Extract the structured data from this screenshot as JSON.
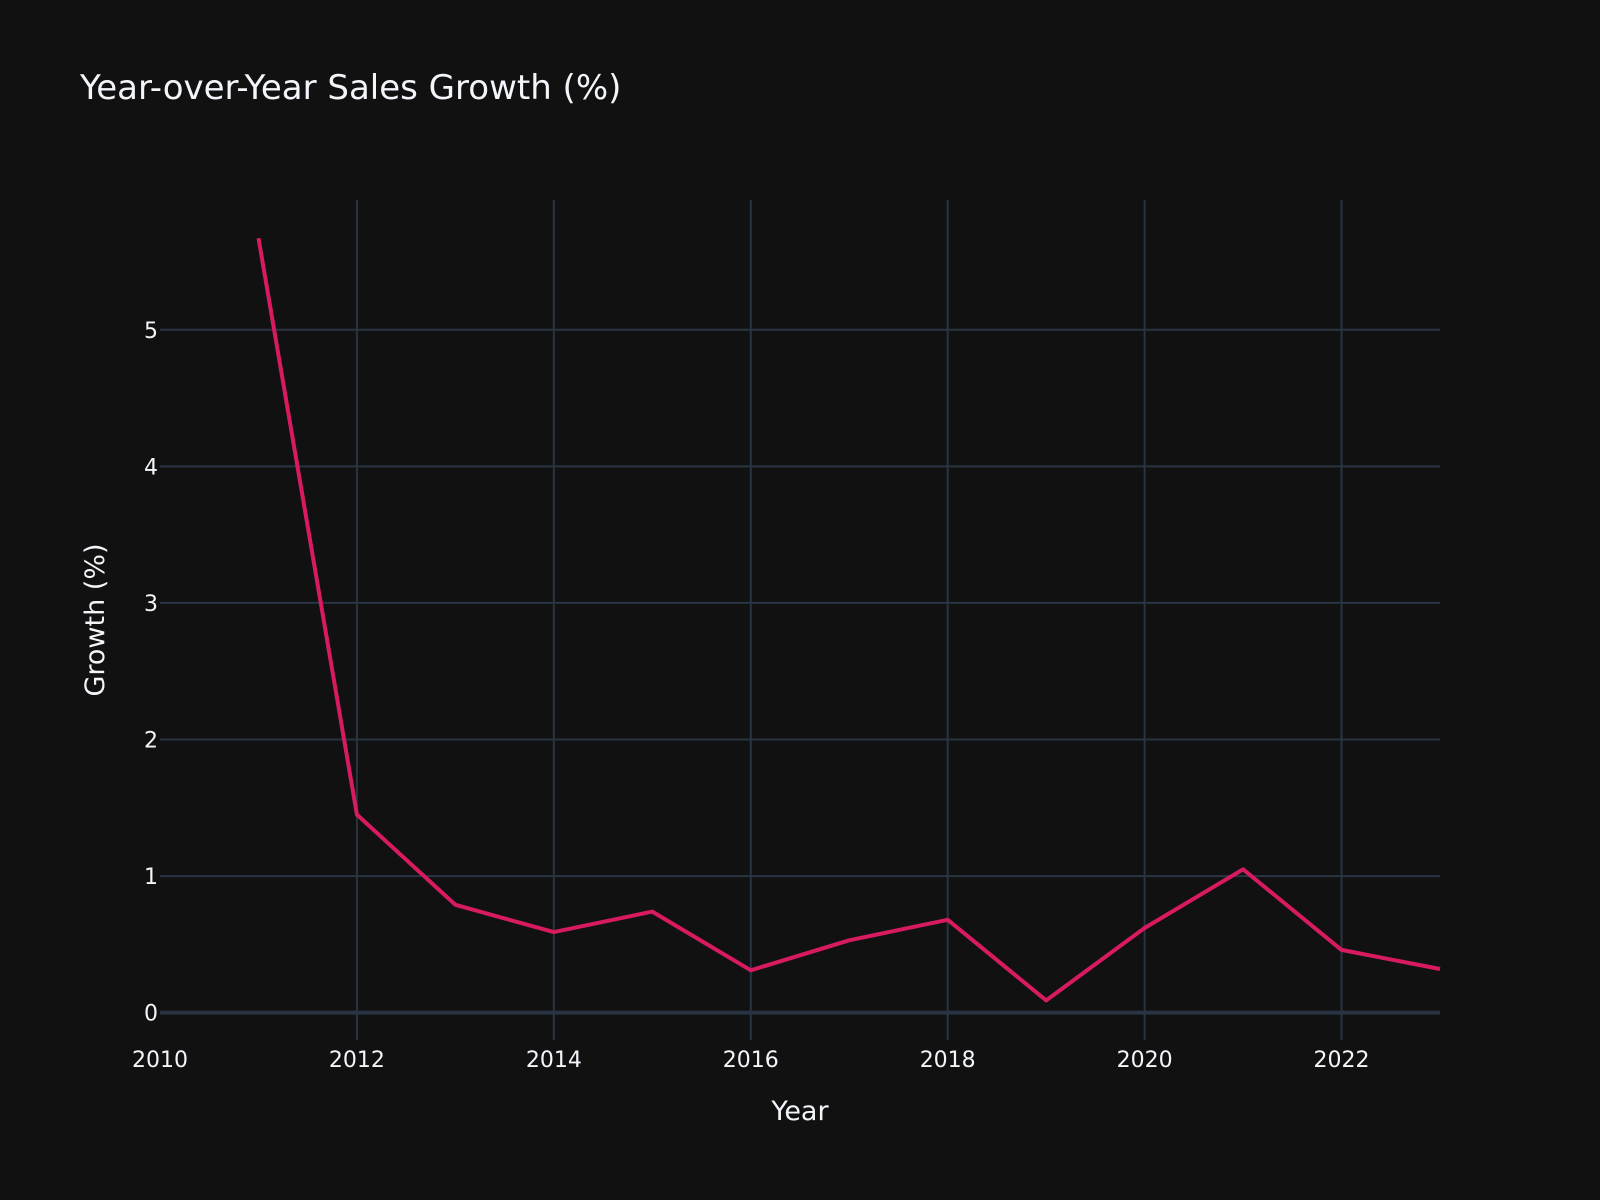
{
  "colors": {
    "background": "#111111",
    "grid": "#283442",
    "zero_line": "#283442",
    "text": "#f2f5fa",
    "series": "#d81b60"
  },
  "chart_data": {
    "type": "line",
    "title": "Year-over-Year Sales Growth (%)",
    "xlabel": "Year",
    "ylabel": "Growth (%)",
    "xlim": [
      2010,
      2023
    ],
    "ylim": [
      -0.2,
      5.95
    ],
    "x_ticks": [
      2010,
      2012,
      2014,
      2016,
      2018,
      2020,
      2022
    ],
    "y_ticks": [
      0,
      1,
      2,
      3,
      4,
      5
    ],
    "grid": true,
    "legend": "none",
    "series": [
      {
        "x": [
          2011,
          2012,
          2013,
          2014,
          2015,
          2016,
          2017,
          2018,
          2019,
          2020,
          2021,
          2022,
          2023
        ],
        "values": [
          5.67,
          1.45,
          0.79,
          0.59,
          0.74,
          0.31,
          0.53,
          0.68,
          0.09,
          0.62,
          1.05,
          0.46,
          0.32
        ]
      }
    ]
  }
}
